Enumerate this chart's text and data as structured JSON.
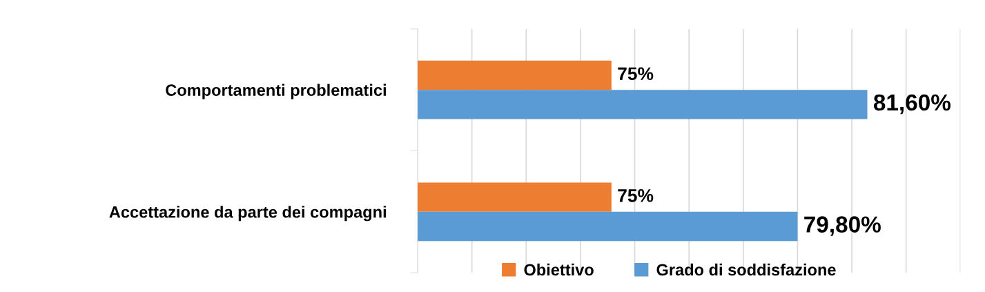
{
  "chart_data": {
    "type": "bar",
    "orientation": "horizontal",
    "categories": [
      "Comportamenti problematici",
      "Accettazione da parte dei compagni"
    ],
    "series": [
      {
        "name": "Obiettivo",
        "color": "#ed7d31",
        "values": [
          75,
          75
        ],
        "value_labels": [
          "75%",
          "75%"
        ]
      },
      {
        "name": "Grado di soddisfazione",
        "color": "#5b9bd5",
        "values": [
          81.6,
          79.8
        ],
        "value_labels": [
          "81,60%",
          "79,80%"
        ]
      }
    ],
    "xlim": [
      70,
      84
    ],
    "xticks": [
      {
        "value": 70,
        "label": null
      },
      {
        "value": 71.4,
        "label": null
      },
      {
        "value": 72.8,
        "label": null
      },
      {
        "value": 74.2,
        "label": null
      },
      {
        "value": 75.6,
        "label": null
      },
      {
        "value": 77,
        "label": null
      },
      {
        "value": 78.4,
        "label": null
      },
      {
        "value": 79.8,
        "label": null
      },
      {
        "value": 81.2,
        "label": null
      },
      {
        "value": 82.6,
        "label": null
      },
      {
        "value": 84,
        "label": null
      }
    ],
    "grid": "x",
    "legend": "bottom",
    "tick_labels": "y"
  }
}
